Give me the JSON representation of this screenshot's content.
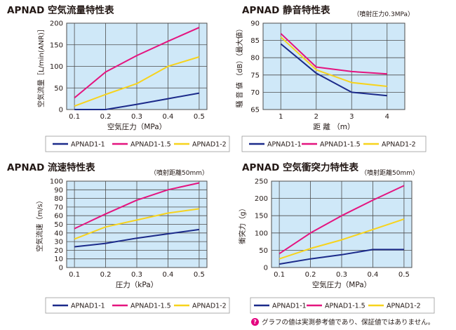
{
  "colors": {
    "plot_bg": "#cfe8f8",
    "grid": "#4d4d4d",
    "s1": "#1b2a8a",
    "s15": "#e4147f",
    "s2": "#f7d31c"
  },
  "series_names": [
    "APNAD1-1",
    "APNAD1-1.5",
    "APNAD1-2"
  ],
  "footnote": "グラフの値は実測参考値であり、保証値ではありません。",
  "chart_data": [
    {
      "type": "line",
      "title": "APNAD 空気流量特性表",
      "note": "",
      "xlabel": "空気圧力（MPa）",
      "ylabel": "空気流量［L/min(ANR)］",
      "x_ticks": [
        0.1,
        0.2,
        0.3,
        0.4,
        0.5
      ],
      "x_tick_labels": [
        "0.1",
        "0.2",
        "0.3",
        "0.4",
        "0.5"
      ],
      "xlim": [
        0.075,
        0.525
      ],
      "ylim": [
        0,
        200
      ],
      "y_ticks": [
        0,
        50,
        100,
        150,
        200
      ],
      "series": [
        {
          "name": "APNAD1-1",
          "x": [
            0.1,
            0.2,
            0.3,
            0.4,
            0.5
          ],
          "values": [
            0,
            0,
            12,
            25,
            38
          ]
        },
        {
          "name": "APNAD1-1.5",
          "x": [
            0.1,
            0.2,
            0.3,
            0.4,
            0.5
          ],
          "values": [
            27,
            87,
            125,
            158,
            190
          ]
        },
        {
          "name": "APNAD1-2",
          "x": [
            0.1,
            0.2,
            0.3,
            0.4,
            0.5
          ],
          "values": [
            8,
            35,
            60,
            100,
            122
          ]
        }
      ]
    },
    {
      "type": "line",
      "title": "APNAD 静音特性表",
      "note": "（噴射圧力0.3MPa）",
      "xlabel": "距 離 （m）",
      "ylabel": "騒 音 値 （dB）（最大値）",
      "x_ticks": [
        1,
        2,
        3,
        4
      ],
      "x_tick_labels": [
        "1",
        "2",
        "3",
        "4"
      ],
      "xlim": [
        0.5,
        4.5
      ],
      "ylim": [
        65,
        90
      ],
      "y_ticks": [
        65,
        70,
        75,
        80,
        85,
        90
      ],
      "series": [
        {
          "name": "APNAD1-1",
          "x": [
            1,
            2,
            3,
            4
          ],
          "values": [
            84,
            75.5,
            70,
            69
          ]
        },
        {
          "name": "APNAD1-1.5",
          "x": [
            1,
            2,
            3,
            4
          ],
          "values": [
            87,
            77.3,
            76,
            75.3
          ]
        },
        {
          "name": "APNAD1-2",
          "x": [
            1,
            2,
            3,
            4
          ],
          "values": [
            86,
            76.5,
            72.8,
            71.7
          ]
        }
      ]
    },
    {
      "type": "line",
      "title": "APNAD 流速特性表",
      "note": "（噴射距離50mm）",
      "xlabel": "圧力（kPa）",
      "ylabel": "空気流速（m/s）",
      "x_ticks": [
        0.1,
        0.2,
        0.3,
        0.4,
        0.5
      ],
      "x_tick_labels": [
        "0.1",
        "0.2",
        "0.3",
        "0.4",
        "0.5"
      ],
      "xlim": [
        0.075,
        0.525
      ],
      "ylim": [
        0,
        100
      ],
      "y_ticks": [
        0,
        10,
        20,
        30,
        40,
        50,
        60,
        70,
        80,
        90,
        100
      ],
      "series": [
        {
          "name": "APNAD1-1",
          "x": [
            0.1,
            0.2,
            0.3,
            0.4,
            0.5
          ],
          "values": [
            24,
            28,
            34,
            39,
            44
          ]
        },
        {
          "name": "APNAD1-1.5",
          "x": [
            0.1,
            0.2,
            0.3,
            0.4,
            0.5
          ],
          "values": [
            45,
            62,
            78,
            90,
            98
          ]
        },
        {
          "name": "APNAD1-2",
          "x": [
            0.1,
            0.2,
            0.3,
            0.4,
            0.5
          ],
          "values": [
            33,
            47,
            55,
            63,
            68
          ]
        }
      ]
    },
    {
      "type": "line",
      "title": "APNAD 空気衝突力特性表",
      "note": "（噴射距離50mm）",
      "xlabel": "空気圧力（MPa）",
      "ylabel": "衝突力（g）",
      "x_ticks": [
        0.1,
        0.2,
        0.3,
        0.4,
        0.5
      ],
      "x_tick_labels": [
        "0.1",
        "0.2",
        "0.3",
        "0.4",
        "0.5"
      ],
      "xlim": [
        0.075,
        0.525
      ],
      "ylim": [
        0,
        250
      ],
      "y_ticks": [
        0,
        50,
        100,
        150,
        200,
        250
      ],
      "series": [
        {
          "name": "APNAD1-1",
          "x": [
            0.1,
            0.2,
            0.3,
            0.4,
            0.5
          ],
          "values": [
            10,
            25,
            37,
            52,
            52
          ]
        },
        {
          "name": "APNAD1-1.5",
          "x": [
            0.1,
            0.2,
            0.3,
            0.4,
            0.5
          ],
          "values": [
            40,
            100,
            150,
            195,
            237
          ]
        },
        {
          "name": "APNAD1-2",
          "x": [
            0.1,
            0.2,
            0.3,
            0.4,
            0.5
          ],
          "values": [
            25,
            55,
            80,
            110,
            140
          ]
        }
      ]
    }
  ]
}
